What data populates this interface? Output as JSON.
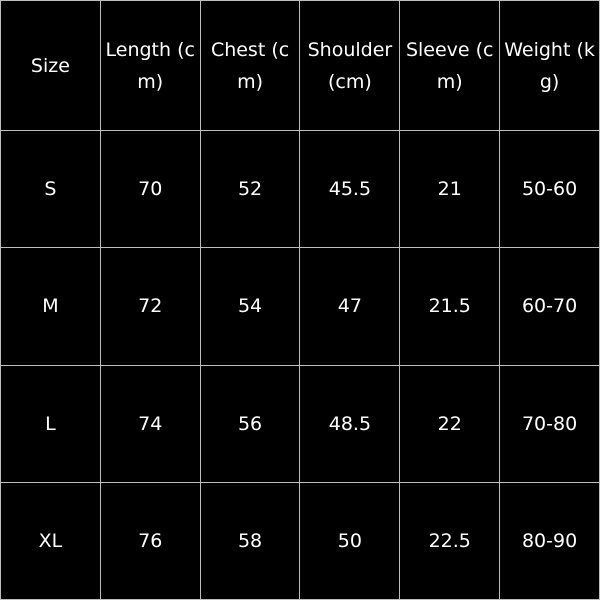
{
  "table": {
    "header": [
      "Size",
      "Length (cm)",
      "Chest (cm)",
      "Shoulder (cm)",
      "Sleeve (cm)",
      "Weight (kg)"
    ],
    "rows": [
      [
        "S",
        70,
        52,
        45.5,
        21,
        "50-60"
      ],
      [
        "M",
        72,
        54,
        47,
        21.5,
        "60-70"
      ],
      [
        "L",
        74,
        56,
        48.5,
        22,
        "70-80"
      ],
      [
        "XL",
        76,
        58,
        50,
        22.5,
        "80-90"
      ]
    ]
  }
}
